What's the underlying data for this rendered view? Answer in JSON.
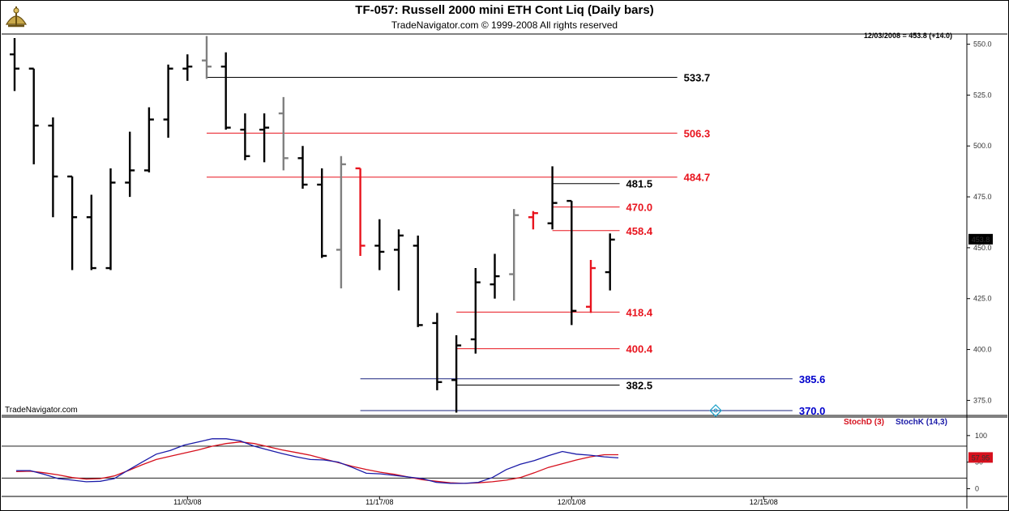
{
  "header": {
    "title": "TF-057:  Russell 2000 mini ETH Cont Liq  (Daily bars)",
    "subtitle": "TradeNavigator.com © 1999-2008 All rights reserved",
    "readout": "12/03/2008 = 453.8 (+14.0)",
    "brand": "TradeNavigator.com",
    "logo_icon": "navigator-sextant-icon"
  },
  "colors": {
    "red": "#e8141e",
    "black": "#000000",
    "gray": "#808080",
    "blue": "#0000cc",
    "level_line_blue": "#1a237e",
    "stoch_d": "#d6101d",
    "stoch_k": "#1a1aa8"
  },
  "chart_data": [
    {
      "type": "ohlc",
      "ylim": [
        368,
        555
      ],
      "y_ticks": [
        "550.0",
        "525.0",
        "500.0",
        "475.0",
        "450.0",
        "425.0",
        "400.0",
        "375.0"
      ],
      "y_tick_values": [
        550,
        525,
        500,
        475,
        450,
        425,
        400,
        375
      ],
      "x_labels": [
        {
          "label": "11/03/08",
          "index": 9
        },
        {
          "label": "11/17/08",
          "index": 19
        },
        {
          "label": "12/01/08",
          "index": 29
        },
        {
          "label": "12/15/08",
          "index": 39
        }
      ],
      "last_price_label": "453.8",
      "bars": [
        {
          "o": 545,
          "h": 553,
          "l": 527,
          "c": 538,
          "color": "black"
        },
        {
          "o": 538,
          "h": 538,
          "l": 491,
          "c": 510,
          "color": "black"
        },
        {
          "o": 510,
          "h": 514,
          "l": 465,
          "c": 485,
          "color": "black"
        },
        {
          "o": 485,
          "h": 485,
          "l": 439,
          "c": 465,
          "color": "black"
        },
        {
          "o": 465,
          "h": 476,
          "l": 439,
          "c": 440,
          "color": "black"
        },
        {
          "o": 440,
          "h": 489,
          "l": 439,
          "c": 482,
          "color": "black"
        },
        {
          "o": 482,
          "h": 507,
          "l": 475,
          "c": 488,
          "color": "black"
        },
        {
          "o": 488,
          "h": 519,
          "l": 487,
          "c": 513,
          "color": "black"
        },
        {
          "o": 513,
          "h": 540,
          "l": 504,
          "c": 538,
          "color": "black"
        },
        {
          "o": 538,
          "h": 545,
          "l": 532,
          "c": 539,
          "color": "black"
        },
        {
          "o": 542,
          "h": 554,
          "l": 533,
          "c": 539,
          "color": "gray"
        },
        {
          "o": 539,
          "h": 546,
          "l": 508,
          "c": 509,
          "color": "black"
        },
        {
          "o": 508,
          "h": 516,
          "l": 493,
          "c": 495,
          "color": "black"
        },
        {
          "o": 508,
          "h": 516,
          "l": 492,
          "c": 509,
          "color": "black"
        },
        {
          "o": 516,
          "h": 524,
          "l": 488,
          "c": 494,
          "color": "gray"
        },
        {
          "o": 494,
          "h": 500,
          "l": 479,
          "c": 481,
          "color": "black"
        },
        {
          "o": 481,
          "h": 489,
          "l": 445,
          "c": 446,
          "color": "black"
        },
        {
          "o": 449,
          "h": 495,
          "l": 430,
          "c": 491,
          "color": "gray"
        },
        {
          "o": 489,
          "h": 489,
          "l": 446,
          "c": 451,
          "color": "red"
        },
        {
          "o": 451,
          "h": 464,
          "l": 439,
          "c": 448,
          "color": "black"
        },
        {
          "o": 449,
          "h": 459,
          "l": 429,
          "c": 456,
          "color": "black"
        },
        {
          "o": 451,
          "h": 456,
          "l": 411,
          "c": 412,
          "color": "black"
        },
        {
          "o": 413,
          "h": 418,
          "l": 380,
          "c": 384,
          "color": "black"
        },
        {
          "o": 385,
          "h": 407,
          "l": 369,
          "c": 402,
          "color": "black"
        },
        {
          "o": 405,
          "h": 440,
          "l": 398,
          "c": 433,
          "color": "black"
        },
        {
          "o": 432,
          "h": 447,
          "l": 425,
          "c": 436,
          "color": "black"
        },
        {
          "o": 437,
          "h": 469,
          "l": 424,
          "c": 466,
          "color": "gray"
        },
        {
          "o": 465,
          "h": 468,
          "l": 459,
          "c": 467,
          "color": "red"
        },
        {
          "o": 462,
          "h": 490,
          "l": 459,
          "c": 472,
          "color": "black"
        },
        {
          "o": 473,
          "h": 473,
          "l": 412,
          "c": 419,
          "color": "black"
        },
        {
          "o": 421,
          "h": 444,
          "l": 418,
          "c": 440,
          "color": "red"
        },
        {
          "o": 438,
          "h": 457,
          "l": 429,
          "c": 454,
          "color": "black"
        }
      ],
      "levels": [
        {
          "label": "533.7",
          "value": 533.7,
          "color": "black",
          "from": 10,
          "to": 34.5
        },
        {
          "label": "506.3",
          "value": 506.3,
          "color": "red",
          "from": 10,
          "to": 34.5
        },
        {
          "label": "484.7",
          "value": 484.7,
          "color": "red",
          "from": 10,
          "to": 34.5
        },
        {
          "label": "481.5",
          "value": 481.5,
          "color": "black",
          "from": 28,
          "to": 31.5
        },
        {
          "label": "470.0",
          "value": 470.0,
          "color": "red",
          "from": 28,
          "to": 31.5
        },
        {
          "label": "458.4",
          "value": 458.4,
          "color": "red",
          "from": 28,
          "to": 31.5
        },
        {
          "label": "418.4",
          "value": 418.4,
          "color": "red",
          "from": 23,
          "to": 31.5
        },
        {
          "label": "400.4",
          "value": 400.4,
          "color": "red",
          "from": 23,
          "to": 31.5
        },
        {
          "label": "385.6",
          "value": 385.6,
          "color": "blue",
          "from": 18,
          "to": 40.5
        },
        {
          "label": "382.5",
          "value": 382.5,
          "color": "black",
          "from": 23,
          "to": 31.5
        },
        {
          "label": "370.0",
          "value": 370.0,
          "color": "blue",
          "from": 18,
          "to": 40.5
        }
      ],
      "marker_index": 36.5
    },
    {
      "type": "line",
      "legend": [
        "StochD (3)",
        "StochK (14,3)"
      ],
      "ylim": [
        -10,
        115
      ],
      "y_ticks": [
        "100",
        "50",
        "0"
      ],
      "y_tick_values": [
        100,
        50,
        0
      ],
      "ref_lines": [
        80,
        20
      ],
      "last_value_label": "57.95",
      "series": [
        {
          "name": "StochD (3)",
          "color": "stoch_d",
          "values": [
            32,
            33,
            30,
            26,
            21,
            18,
            19,
            24,
            34,
            45,
            55,
            61,
            67,
            73,
            80,
            85,
            88,
            85,
            79,
            73,
            68,
            63,
            56,
            49,
            42,
            36,
            31,
            27,
            22,
            17,
            14,
            11,
            10,
            11,
            13,
            16,
            21,
            30,
            40,
            47,
            54,
            60,
            64,
            64
          ]
        },
        {
          "name": "StochK (14,3)",
          "color": "stoch_k",
          "values": [
            34,
            34,
            27,
            19,
            16,
            13,
            14,
            19,
            35,
            50,
            65,
            72,
            82,
            88,
            94,
            94,
            90,
            80,
            73,
            66,
            60,
            55,
            54,
            50,
            40,
            29,
            28,
            25,
            22,
            19,
            12,
            10,
            10,
            12,
            21,
            36,
            46,
            53,
            62,
            70,
            65,
            63,
            60,
            58
          ]
        }
      ]
    }
  ]
}
